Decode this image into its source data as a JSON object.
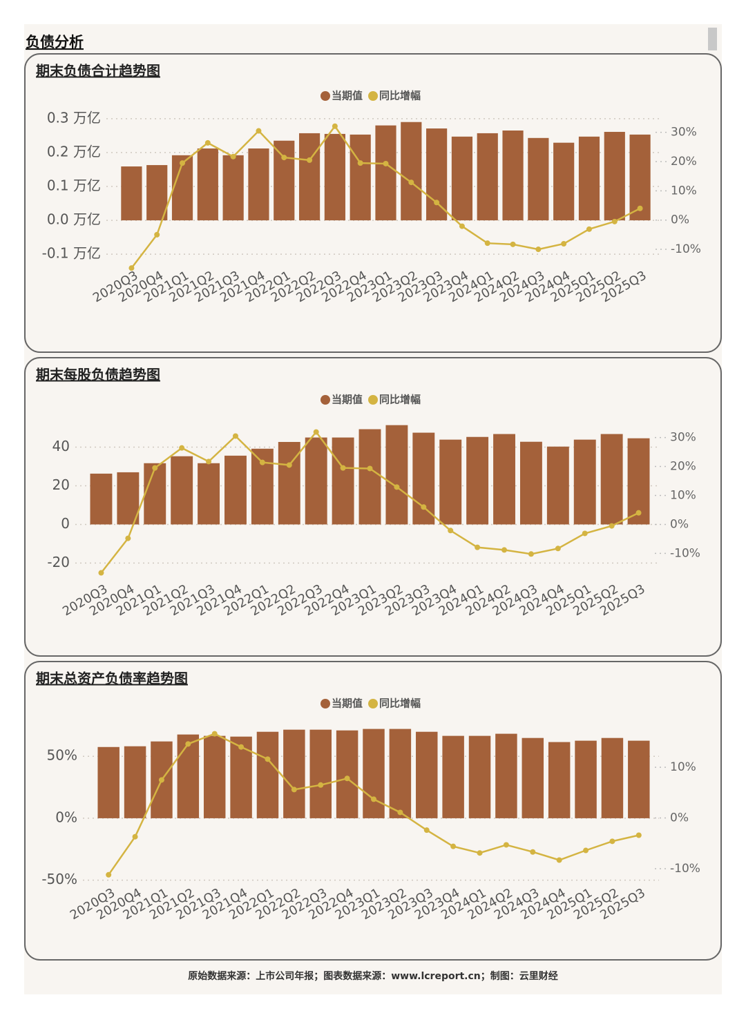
{
  "page": {
    "title": "负债分析",
    "footer": "原始数据来源：上市公司年报；图表数据来源：www.lcreport.cn；制图：云里财经"
  },
  "chart_data": [
    {
      "type": "combo",
      "title": "期末负债合计趋势图",
      "categories": [
        "2020Q3",
        "2020Q4",
        "2021Q1",
        "2021Q2",
        "2021Q3",
        "2021Q4",
        "2022Q1",
        "2022Q2",
        "2022Q3",
        "2022Q4",
        "2023Q1",
        "2023Q2",
        "2023Q3",
        "2023Q4",
        "2024Q1",
        "2024Q2",
        "2024Q3",
        "2024Q4",
        "2025Q1",
        "2025Q2",
        "2025Q3"
      ],
      "series": [
        {
          "name": "当期值",
          "type": "bar",
          "color": "#a4613a",
          "values": [
            0.159,
            0.163,
            0.192,
            0.212,
            0.192,
            0.212,
            0.235,
            0.257,
            0.255,
            0.253,
            0.28,
            0.29,
            0.271,
            0.247,
            0.257,
            0.265,
            0.243,
            0.229,
            0.247,
            0.261,
            0.253
          ]
        },
        {
          "name": "同比增幅",
          "type": "line",
          "axis": "y2",
          "color": "#d4b442",
          "values": [
            -16.4,
            -5.0,
            19.5,
            26.4,
            21.7,
            30.5,
            21.4,
            20.5,
            32.1,
            19.5,
            19.3,
            12.9,
            6.0,
            -2.1,
            -7.9,
            -8.3,
            -10.0,
            -8.1,
            -3.1,
            -0.5,
            4.0
          ]
        }
      ],
      "ylim": [
        -0.12,
        0.32
      ],
      "yticks": [
        {
          "value": 0.3,
          "label": "0.3 万亿"
        },
        {
          "value": 0.2,
          "label": "0.2 万亿"
        },
        {
          "value": 0.1,
          "label": "0.1 万亿"
        },
        {
          "value": 0.0,
          "label": "0.0 万亿"
        },
        {
          "value": -0.1,
          "label": "-0.1 万亿"
        }
      ],
      "y2lim": [
        -14,
        37
      ],
      "y2ticks": [
        {
          "value": 30,
          "label": "30%"
        },
        {
          "value": 20,
          "label": "20%"
        },
        {
          "value": 10,
          "label": "10%"
        },
        {
          "value": 0,
          "label": "0%"
        },
        {
          "value": -10,
          "label": "-10%"
        }
      ],
      "grid": true
    },
    {
      "type": "combo",
      "title": "期末每股负债趋势图",
      "categories": [
        "2020Q3",
        "2020Q4",
        "2021Q1",
        "2021Q2",
        "2021Q3",
        "2021Q4",
        "2022Q1",
        "2022Q2",
        "2022Q3",
        "2022Q4",
        "2023Q1",
        "2023Q2",
        "2023Q3",
        "2023Q4",
        "2024Q1",
        "2024Q2",
        "2024Q3",
        "2024Q4",
        "2025Q1",
        "2025Q2",
        "2025Q3"
      ],
      "series": [
        {
          "name": "当期值",
          "type": "bar",
          "color": "#a4613a",
          "values": [
            26.3,
            27.0,
            31.7,
            35.3,
            31.7,
            35.6,
            39.2,
            42.7,
            45.0,
            45.0,
            49.3,
            51.4,
            47.5,
            43.9,
            45.3,
            46.8,
            42.8,
            40.3,
            43.9,
            46.8,
            44.6
          ]
        },
        {
          "name": "同比增幅",
          "type": "line",
          "axis": "y2",
          "color": "#d4b442",
          "values": [
            -16.7,
            -4.8,
            19.5,
            26.4,
            21.7,
            30.5,
            21.4,
            20.5,
            31.9,
            19.5,
            19.3,
            12.9,
            6.0,
            -2.1,
            -7.9,
            -8.8,
            -10.2,
            -8.3,
            -3.1,
            -0.5,
            4.0
          ]
        }
      ],
      "ylim": [
        -27,
        57
      ],
      "yticks": [
        40,
        20,
        0,
        -20
      ],
      "y2lim": [
        -18,
        38
      ],
      "y2ticks": [
        {
          "value": 30,
          "label": "30%"
        },
        {
          "value": 20,
          "label": "20%"
        },
        {
          "value": 10,
          "label": "10%"
        },
        {
          "value": 0,
          "label": "0%"
        },
        {
          "value": -10,
          "label": "-10%"
        }
      ],
      "grid": true
    },
    {
      "type": "combo",
      "title": "期末总资产负债率趋势图",
      "categories": [
        "2020Q3",
        "2020Q4",
        "2021Q1",
        "2021Q2",
        "2021Q3",
        "2021Q4",
        "2022Q1",
        "2022Q2",
        "2022Q3",
        "2022Q4",
        "2023Q1",
        "2023Q2",
        "2023Q3",
        "2023Q4",
        "2024Q1",
        "2024Q2",
        "2024Q3",
        "2024Q4",
        "2025Q1",
        "2025Q2",
        "2025Q3"
      ],
      "series": [
        {
          "name": "当期值",
          "type": "bar",
          "color": "#a4613a",
          "values": [
            57.5,
            58.1,
            62.0,
            67.6,
            66.5,
            65.9,
            69.8,
            71.5,
            71.5,
            70.9,
            72.1,
            72.1,
            69.8,
            66.5,
            66.5,
            68.2,
            64.8,
            61.5,
            62.6,
            64.8,
            62.6
          ]
        },
        {
          "name": "同比增幅",
          "type": "line",
          "axis": "y2",
          "color": "#d4b442",
          "values": [
            -11.2,
            -3.7,
            7.5,
            14.6,
            16.6,
            14.0,
            11.6,
            5.6,
            6.5,
            7.8,
            3.7,
            1.1,
            -2.4,
            -5.6,
            -6.9,
            -5.3,
            -6.7,
            -8.3,
            -6.4,
            -4.6,
            -3.4
          ]
        }
      ],
      "ylim": [
        -53,
        78
      ],
      "yticks": [
        {
          "value": 50,
          "label": "50%"
        },
        {
          "value": 0,
          "label": "0%"
        },
        {
          "value": -50,
          "label": "-50%"
        }
      ],
      "y2lim": [
        -13,
        19
      ],
      "y2ticks": [
        {
          "value": 10,
          "label": "10%"
        },
        {
          "value": 0,
          "label": "0%"
        },
        {
          "value": -10,
          "label": "-10%"
        }
      ],
      "grid": true
    }
  ]
}
